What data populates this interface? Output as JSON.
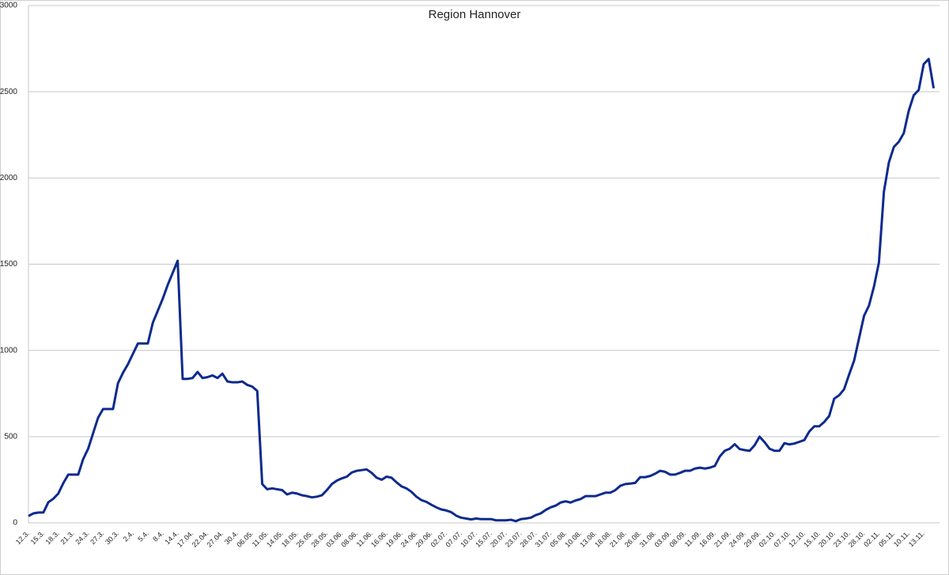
{
  "chart_data": {
    "type": "line",
    "title": "Region Hannover",
    "categories": [
      "12.3.",
      null,
      null,
      "15.3.",
      null,
      null,
      "18.3.",
      null,
      null,
      "21.3.",
      null,
      null,
      "24.3.",
      null,
      null,
      "27.3.",
      null,
      null,
      "30.3.",
      null,
      null,
      "2.4.",
      null,
      null,
      "5.4.",
      null,
      null,
      "8.4.",
      null,
      null,
      "14.4.",
      null,
      null,
      "17.04.",
      null,
      null,
      "22.04.",
      null,
      null,
      "27.04.",
      null,
      null,
      "30.4.",
      null,
      null,
      "06.05.",
      null,
      null,
      "11.05.",
      null,
      null,
      "14.05.",
      null,
      null,
      "18.05.",
      null,
      null,
      "25.05.",
      null,
      null,
      "28.05.",
      null,
      null,
      "03.06.",
      null,
      null,
      "08.06.",
      null,
      null,
      "11.06.",
      null,
      null,
      "16.06.",
      null,
      null,
      "19.06.",
      null,
      null,
      "24.06.",
      null,
      null,
      "29.06.",
      null,
      null,
      "02.07.",
      null,
      null,
      "07.07.",
      null,
      null,
      "10.07.",
      null,
      null,
      "15.07.",
      null,
      null,
      "20.07.",
      null,
      null,
      "23.07.",
      null,
      null,
      "28.07.",
      null,
      null,
      "31.07.",
      null,
      null,
      "05.08.",
      null,
      null,
      "10.08.",
      null,
      null,
      "13.08.",
      null,
      null,
      "18.08.",
      null,
      null,
      "21.08.",
      null,
      null,
      "26.08.",
      null,
      null,
      "31.08.",
      null,
      null,
      "03.09.",
      null,
      null,
      "08.09.",
      null,
      null,
      "11.09.",
      null,
      null,
      "16.09.",
      null,
      null,
      "21.09.",
      null,
      null,
      "24.09.",
      null,
      null,
      "29.09.",
      null,
      null,
      "02.10.",
      null,
      null,
      "07.10.",
      null,
      null,
      "12.10.",
      null,
      null,
      "15.10.",
      null,
      null,
      "20.10.",
      null,
      null,
      "23.10.",
      null,
      null,
      "28.10.",
      null,
      null,
      "02.11.",
      null,
      null,
      "05.11.",
      null,
      null,
      "10.11.",
      null,
      null,
      "13.11.",
      null,
      null
    ],
    "values": [
      40,
      55,
      60,
      60,
      120,
      140,
      170,
      230,
      280,
      280,
      280,
      370,
      430,
      520,
      610,
      660,
      660,
      660,
      810,
      870,
      920,
      980,
      1040,
      1040,
      1040,
      1160,
      1230,
      1300,
      1380,
      1450,
      1520,
      835,
      835,
      840,
      875,
      840,
      845,
      855,
      840,
      865,
      820,
      815,
      815,
      820,
      800,
      790,
      765,
      225,
      195,
      200,
      195,
      190,
      165,
      175,
      170,
      160,
      155,
      148,
      152,
      160,
      190,
      225,
      245,
      258,
      268,
      292,
      302,
      306,
      310,
      290,
      262,
      250,
      268,
      262,
      235,
      212,
      200,
      180,
      152,
      132,
      122,
      105,
      90,
      78,
      72,
      62,
      42,
      30,
      25,
      20,
      25,
      22,
      22,
      22,
      15,
      15,
      15,
      18,
      10,
      22,
      25,
      30,
      45,
      55,
      75,
      90,
      100,
      118,
      125,
      118,
      130,
      138,
      155,
      155,
      155,
      165,
      175,
      175,
      190,
      215,
      225,
      228,
      232,
      265,
      265,
      272,
      285,
      302,
      296,
      280,
      280,
      290,
      302,
      302,
      315,
      320,
      315,
      320,
      330,
      385,
      418,
      430,
      456,
      428,
      422,
      418,
      450,
      500,
      468,
      430,
      418,
      418,
      462,
      455,
      460,
      470,
      480,
      530,
      560,
      560,
      585,
      620,
      720,
      740,
      775,
      860,
      940,
      1070,
      1200,
      1260,
      1370,
      1510,
      1920,
      2090,
      2180,
      2210,
      2260,
      2390,
      2480,
      2510,
      2660,
      2690,
      2520
    ],
    "color": "#0d2a8e",
    "ylim": [
      0,
      3000
    ],
    "yticks": [
      0,
      500,
      1000,
      1500,
      2000,
      2500,
      3000
    ],
    "grid": true
  }
}
